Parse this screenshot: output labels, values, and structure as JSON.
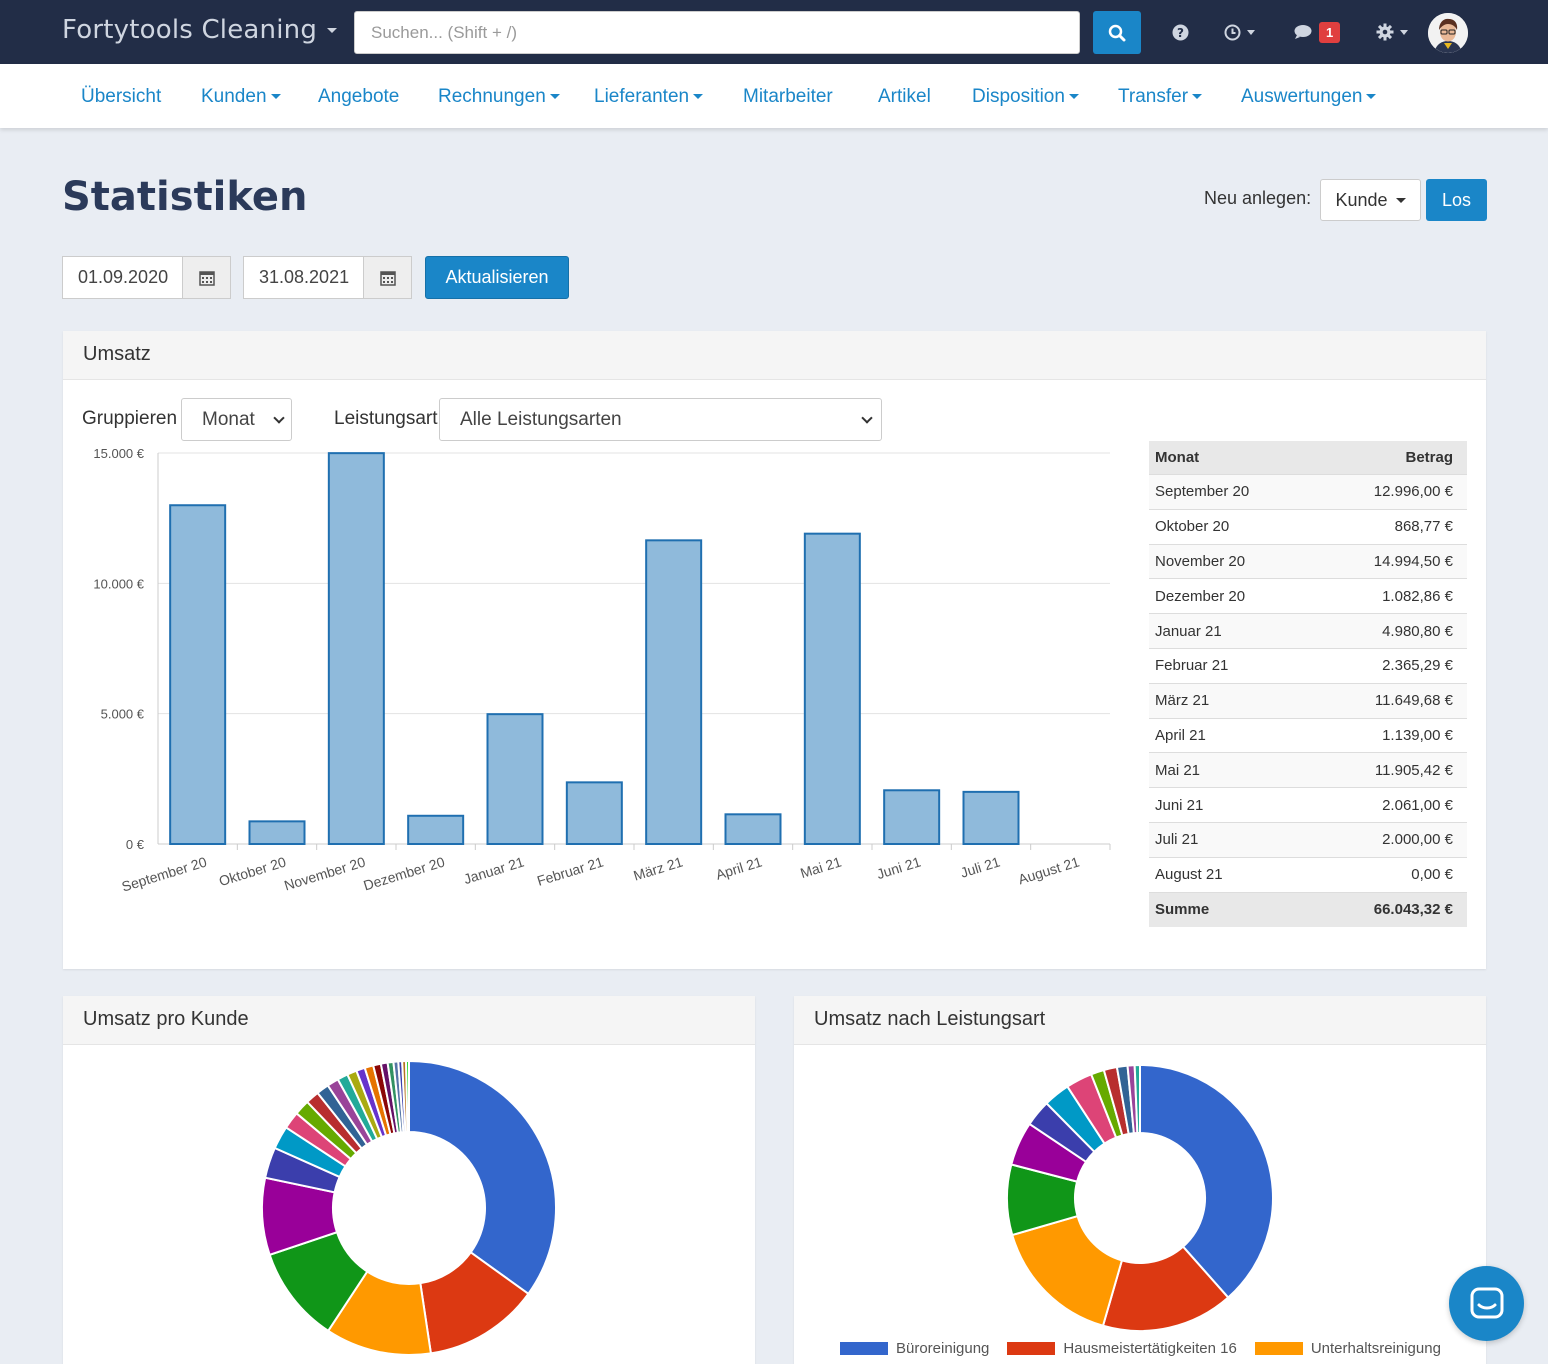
{
  "header": {
    "brand": "Fortytools Cleaning",
    "search_placeholder": "Suchen... (Shift + /)",
    "notification_count": "1"
  },
  "nav": {
    "items": [
      {
        "label": "Übersicht"
      },
      {
        "label": "Kunden"
      },
      {
        "label": "Angebote"
      },
      {
        "label": "Rechnungen"
      },
      {
        "label": "Lieferanten"
      },
      {
        "label": "Mitarbeiter"
      },
      {
        "label": "Artikel"
      },
      {
        "label": "Disposition"
      },
      {
        "label": "Transfer"
      },
      {
        "label": "Auswertungen"
      }
    ]
  },
  "page": {
    "title": "Statistiken",
    "neu_label": "Neu anlegen:",
    "neu_value": "Kunde",
    "los_label": "Los",
    "date_from": "01.09.2020",
    "date_to": "31.08.2021",
    "refresh_label": "Aktualisieren"
  },
  "umsatz": {
    "title": "Umsatz",
    "group_label": "Gruppieren",
    "group_value": "Monat",
    "type_label": "Leistungsart",
    "type_value": "Alle Leistungsarten",
    "table": {
      "col_month": "Monat",
      "col_amount": "Betrag",
      "rows": [
        {
          "m": "September 20",
          "v": "12.996,00 €"
        },
        {
          "m": "Oktober 20",
          "v": "868,77 €"
        },
        {
          "m": "November 20",
          "v": "14.994,50 €"
        },
        {
          "m": "Dezember 20",
          "v": "1.082,86 €"
        },
        {
          "m": "Januar 21",
          "v": "4.980,80 €"
        },
        {
          "m": "Februar 21",
          "v": "2.365,29 €"
        },
        {
          "m": "März 21",
          "v": "11.649,68 €"
        },
        {
          "m": "April 21",
          "v": "1.139,00 €"
        },
        {
          "m": "Mai 21",
          "v": "11.905,42 €"
        },
        {
          "m": "Juni 21",
          "v": "2.061,00 €"
        },
        {
          "m": "Juli 21",
          "v": "2.000,00 €"
        },
        {
          "m": "August 21",
          "v": "0,00 €"
        }
      ],
      "sum_label": "Summe",
      "sum_value": "66.043,32 €"
    }
  },
  "kunde_panel": {
    "title": "Umsatz pro Kunde"
  },
  "leistung_panel": {
    "title": "Umsatz nach Leistungsart",
    "legend": [
      "Büroreinigung",
      "Hausmeistertätigkeiten 16",
      "Unterhaltsreinigung"
    ]
  },
  "colors": {
    "primary": "#1a86c8",
    "navbar": "#222d47",
    "bar_fill": "#8fbadb",
    "bar_stroke": "#1f6fb0"
  },
  "chart_data": [
    {
      "type": "bar",
      "categories": [
        "September 20",
        "Oktober 20",
        "November 20",
        "Dezember 20",
        "Januar 21",
        "Februar 21",
        "März 21",
        "April 21",
        "Mai 21",
        "Juni 21",
        "Juli 21",
        "August 21"
      ],
      "values": [
        12996.0,
        868.77,
        14994.5,
        1082.86,
        4980.8,
        2365.29,
        11649.68,
        1139.0,
        11905.42,
        2061.0,
        2000.0,
        0
      ],
      "yticks": [
        "0 €",
        "5.000 €",
        "10.000 €",
        "15.000 €"
      ],
      "ylim": [
        0,
        15000
      ],
      "grid": true
    },
    {
      "type": "pie",
      "values": [
        33,
        12,
        11,
        10,
        8,
        3.2,
        2.4,
        1.8,
        1.6,
        1.4,
        1.3,
        1.2,
        1.1,
        1.0,
        0.9,
        0.9,
        0.8,
        0.7,
        0.6,
        0.5,
        0.4,
        0.4,
        0.3
      ],
      "colors": [
        "#3366cc",
        "#dc3912",
        "#ff9900",
        "#109618",
        "#990099",
        "#3b3eac",
        "#0099c6",
        "#dd4477",
        "#66aa00",
        "#b82e2e",
        "#316395",
        "#994499",
        "#22aa99",
        "#aaaa11",
        "#6633cc",
        "#e67300",
        "#8b0707",
        "#651067",
        "#329262",
        "#5574a6",
        "#3b3eac",
        "#b77322",
        "#16d620"
      ]
    },
    {
      "type": "pie",
      "legend": [
        "Büroreinigung",
        "Hausmeistertätigkeiten 16",
        "Unterhaltsreinigung"
      ],
      "values": [
        36,
        15,
        15,
        8,
        5,
        3,
        3,
        3,
        1.5,
        1.5,
        1.2,
        0.8,
        0.6
      ],
      "colors": [
        "#3366cc",
        "#dc3912",
        "#ff9900",
        "#109618",
        "#990099",
        "#3b3eac",
        "#0099c6",
        "#dd4477",
        "#66aa00",
        "#b82e2e",
        "#316395",
        "#994499",
        "#22aa99"
      ]
    }
  ]
}
